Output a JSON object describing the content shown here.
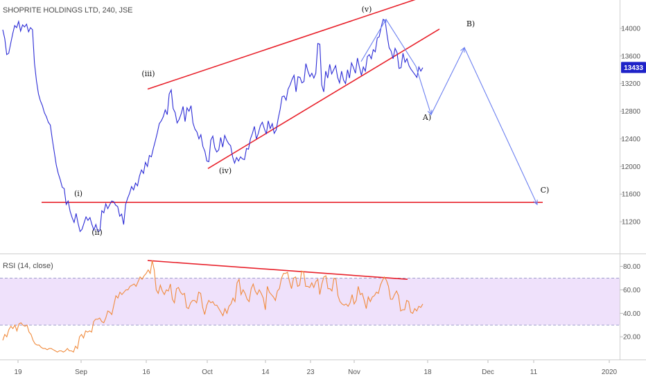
{
  "header": {
    "symbol_title": "SHOPRITE HOLDINGS LTD, 240, JSE",
    "rsi_title": "RSI (14, close)"
  },
  "colors": {
    "price_line": "#2b2bd6",
    "projection_line": "#6b7ff0",
    "trend_lines": "#e8202a",
    "rsi_line": "#f08a3c",
    "rsi_band": "#efe1fb",
    "rsi_band_border": "#9e9ecc",
    "last_price_badge": "#1e22c8"
  },
  "chart_data": [
    {
      "type": "line",
      "name": "price",
      "ylim": [
        10800,
        14350
      ],
      "y_ticks": [
        11200,
        11600,
        12000,
        12400,
        12800,
        13200,
        13600,
        14000
      ],
      "last_price": "13433",
      "x_ticks": [
        "19",
        "Sep",
        "16",
        "Oct",
        "14",
        "23",
        "Nov",
        "18",
        "Dec",
        "11",
        "2020"
      ],
      "series": [
        {
          "values": [
            13980,
            13850,
            13620,
            13640,
            13780,
            13920,
            14040,
            14010,
            14100,
            13960,
            14050,
            14020,
            14060,
            13950,
            14010,
            13980,
            13500,
            13240,
            13050,
            12950,
            12880,
            12780,
            12720,
            12640,
            12600,
            12390,
            12210,
            12020,
            11900,
            11810,
            11700,
            11680,
            11450,
            11500,
            11350,
            11260,
            11190,
            11320,
            11180,
            11060,
            11090,
            11180,
            11270,
            11220,
            11260,
            11160,
            11080,
            11160,
            11060,
            11070,
            11360,
            11330,
            11460,
            11390,
            11450,
            11500,
            11490,
            11440,
            11420,
            11280,
            11310,
            11160,
            11450,
            11540,
            11610,
            11710,
            11660,
            11760,
            11720,
            11860,
            11950,
            11900,
            12060,
            12000,
            12160,
            12140,
            12260,
            12370,
            12490,
            12620,
            12660,
            12720,
            12820,
            12750,
            13050,
            13110,
            12840,
            12780,
            12630,
            12680,
            12760,
            12870,
            12650,
            12850,
            12800,
            12880,
            12630,
            12540,
            12500,
            12400,
            12460,
            12290,
            12220,
            12080,
            12070,
            12380,
            12440,
            12270,
            12210,
            12240,
            12420,
            12280,
            12450,
            12380,
            12330,
            12300,
            12140,
            12050,
            12130,
            12080,
            12140,
            12110,
            12100,
            12260,
            12250,
            12400,
            12480,
            12580,
            12400,
            12480,
            12590,
            12640,
            12550,
            12470,
            12660,
            12550,
            12620,
            12480,
            12530,
            12690,
            12830,
            13010,
            13020,
            12960,
            13120,
            13180,
            13260,
            13320,
            13080,
            13300,
            13290,
            13210,
            13230,
            13490,
            13380,
            13300,
            13350,
            13280,
            13350,
            13780,
            13770,
            13180,
            13080,
            13380,
            13280,
            13480,
            13340,
            13400,
            13460,
            13290,
            13210,
            13380,
            13250,
            13200,
            13400,
            13280,
            13500,
            13430,
            13350,
            13570,
            13440,
            13320,
            13440,
            13380,
            13590,
            13620,
            13560,
            13690,
            13660,
            13860,
            13880,
            14020,
            14130,
            14110,
            13900,
            13720,
            13670,
            13560,
            13710,
            13650,
            13420,
            13430,
            13640,
            13510,
            13560,
            13460,
            13410,
            13370,
            13330,
            13290,
            13440,
            13380,
            13430
          ]
        },
        {
          "name": "projection",
          "values": [
            14130,
            13450,
            12750,
            13720,
            11450
          ]
        }
      ],
      "annotations": {
        "wave_labels": [
          "(i)",
          "(ii)",
          "(iii)",
          "(iv)",
          "(v)",
          "A)",
          "B)",
          "C)"
        ],
        "trend_lines": [
          {
            "from": {
              "date": "(iii)",
              "price": 13120
            },
            "to": {
              "date": "top",
              "price": 14220
            }
          },
          {
            "from": {
              "date": "(iv)",
              "price": 11970
            },
            "to": {
              "date": "top",
              "price": 13990
            }
          },
          {
            "support_price": 11480
          }
        ]
      }
    },
    {
      "type": "line",
      "name": "rsi",
      "ylim": [
        3,
        88
      ],
      "y_ticks": [
        20.0,
        40.0,
        60.0,
        80.0
      ],
      "y_tick_labels": [
        "20.00",
        "40.00",
        "60.00",
        "80.00"
      ],
      "band": [
        30,
        70
      ],
      "values": [
        17,
        22,
        20,
        26,
        29,
        27,
        30,
        25,
        31,
        32,
        30,
        29,
        30,
        24,
        22,
        17,
        14,
        13,
        13,
        11,
        10,
        10,
        9,
        10,
        10,
        9,
        8,
        7,
        8,
        8,
        7,
        8,
        10,
        8,
        8,
        7,
        12,
        10,
        20,
        22,
        19,
        25,
        24,
        25,
        24,
        33,
        35,
        35,
        36,
        33,
        32,
        36,
        42,
        41,
        39,
        47,
        55,
        53,
        58,
        56,
        58,
        60,
        60,
        63,
        64,
        65,
        63,
        67,
        71,
        69,
        72,
        74,
        77,
        74,
        85,
        77,
        60,
        57,
        64,
        59,
        56,
        60,
        59,
        65,
        52,
        49,
        61,
        62,
        58,
        56,
        57,
        45,
        44,
        49,
        51,
        51,
        49,
        58,
        57,
        45,
        39,
        47,
        51,
        49,
        50,
        47,
        47,
        44,
        41,
        38,
        44,
        40,
        46,
        48,
        53,
        50,
        66,
        69,
        56,
        60,
        57,
        52,
        50,
        61,
        65,
        59,
        56,
        60,
        57,
        53,
        43,
        63,
        58,
        56,
        54,
        51,
        59,
        61,
        70,
        74,
        74,
        75,
        67,
        61,
        70,
        71,
        63,
        64,
        76,
        75,
        63,
        63,
        62,
        66,
        62,
        67,
        69,
        56,
        65,
        71,
        72,
        61,
        61,
        59,
        70,
        69,
        55,
        50,
        48,
        47,
        48,
        46,
        49,
        56,
        48,
        51,
        63,
        56,
        57,
        51,
        44,
        54,
        50,
        54,
        55,
        58,
        57,
        64,
        68,
        71,
        68,
        63,
        52,
        52,
        56,
        59,
        55,
        42,
        43,
        43,
        51,
        50,
        41,
        40,
        44,
        42,
        46,
        45,
        48
      ]
    }
  ]
}
